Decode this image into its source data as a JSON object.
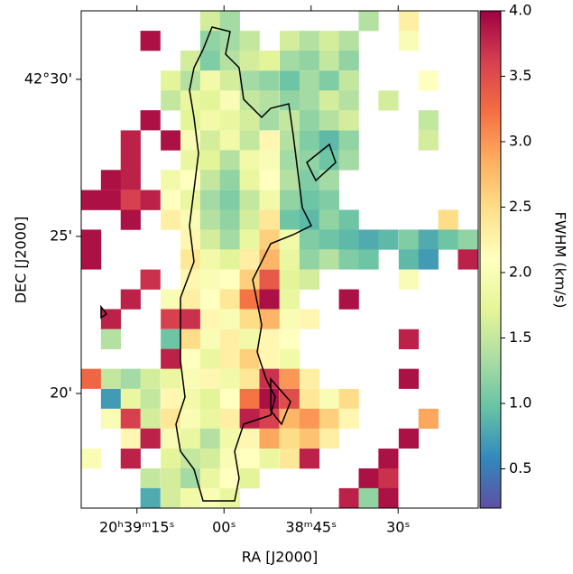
{
  "chart_data": {
    "type": "heatmap",
    "xlabel": "RA [J2000]",
    "ylabel": "DEC [J2000]",
    "colorbar_label": "FWHM (km/s)",
    "xlim": [
      2364.6,
      2296.2
    ],
    "xticks": [
      {
        "value": 2355,
        "label": "20ʰ39ᵐ15ˢ"
      },
      {
        "value": 2340,
        "label": "00ˢ"
      },
      {
        "value": 2325,
        "label": "38ᵐ45ˢ"
      },
      {
        "value": 2310,
        "label": "30ˢ"
      }
    ],
    "ylim": [
      16.35,
      32.18
    ],
    "yticks": [
      {
        "value": 30,
        "label": "42°30'"
      },
      {
        "value": 25,
        "label": "25'"
      },
      {
        "value": 20,
        "label": "20'"
      }
    ],
    "clim": [
      0.2,
      4.0
    ],
    "cticks": [
      0.5,
      {
        "value": 1.0,
        "label": "1.0"
      },
      1.5,
      {
        "value": 2.0,
        "label": "2.0"
      },
      2.5,
      {
        "value": 3.0,
        "label": "3.0"
      },
      3.5,
      {
        "value": 4.0,
        "label": "4.0"
      }
    ],
    "colormap": [
      "#5e4fa2",
      "#3288bd",
      "#66c2a5",
      "#abdda4",
      "#e6f598",
      "#ffffbf",
      "#fee08b",
      "#fdae61",
      "#f46d43",
      "#d53e4f",
      "#9e0142"
    ],
    "x": [
      2362.9,
      2359.5,
      2356.1,
      2352.7,
      2349.2,
      2345.8,
      2342.4,
      2339.0,
      2335.6,
      2332.2,
      2328.7,
      2325.3,
      2321.9,
      2318.5,
      2315.1,
      2311.7,
      2308.2,
      2304.8,
      2301.4,
      2298.0
    ],
    "y": [
      31.86,
      31.23,
      30.6,
      29.96,
      29.33,
      28.7,
      28.06,
      27.43,
      26.8,
      26.16,
      25.53,
      24.9,
      24.27,
      23.63,
      23.0,
      22.37,
      21.73,
      21.1,
      20.47,
      19.83,
      19.2,
      18.57,
      17.93,
      17.3,
      16.67
    ],
    "values": [
      [
        null,
        null,
        null,
        null,
        null,
        null,
        1.6,
        1.3,
        null,
        null,
        null,
        null,
        null,
        null,
        1.4,
        null,
        2.3,
        null,
        null,
        null
      ],
      [
        null,
        null,
        null,
        3.9,
        null,
        null,
        1.2,
        1.3,
        1.5,
        null,
        1.6,
        1.4,
        1.6,
        1.4,
        null,
        null,
        2.0,
        null,
        null,
        null
      ],
      [
        null,
        null,
        null,
        null,
        null,
        1.6,
        1.1,
        1.4,
        1.6,
        1.7,
        1.3,
        1.2,
        1.5,
        1.2,
        null,
        null,
        null,
        null,
        null,
        null
      ],
      [
        null,
        null,
        null,
        null,
        1.7,
        1.4,
        1.9,
        1.6,
        1.3,
        1.2,
        1.0,
        1.3,
        1.1,
        1.5,
        null,
        null,
        null,
        2.1,
        null,
        null
      ],
      [
        null,
        null,
        null,
        null,
        1.5,
        1.8,
        1.7,
        2.0,
        1.5,
        1.4,
        1.2,
        1.3,
        1.6,
        1.4,
        null,
        1.6,
        null,
        null,
        null,
        null
      ],
      [
        null,
        null,
        null,
        3.9,
        null,
        1.7,
        1.9,
        1.8,
        1.6,
        1.3,
        1.5,
        1.2,
        1.4,
        1.6,
        null,
        null,
        null,
        1.5,
        null,
        null
      ],
      [
        null,
        null,
        3.8,
        null,
        3.9,
        2.0,
        1.6,
        1.9,
        1.5,
        2.2,
        1.4,
        1.1,
        0.9,
        1.2,
        null,
        null,
        null,
        1.6,
        null,
        null
      ],
      [
        null,
        null,
        3.8,
        null,
        null,
        1.8,
        1.7,
        1.4,
        1.9,
        2.0,
        1.3,
        1.2,
        1.0,
        1.3,
        null,
        null,
        null,
        null,
        null,
        null
      ],
      [
        null,
        3.9,
        3.8,
        null,
        1.9,
        2.1,
        1.5,
        1.2,
        1.8,
        2.1,
        1.4,
        1.1,
        1.3,
        null,
        null,
        null,
        null,
        null,
        null,
        null
      ],
      [
        3.9,
        3.9,
        3.6,
        3.8,
        2.1,
        1.8,
        1.3,
        1.1,
        1.5,
        1.9,
        1.2,
        1.0,
        1.1,
        null,
        null,
        null,
        null,
        null,
        null,
        null
      ],
      [
        null,
        null,
        3.9,
        null,
        2.3,
        2.0,
        1.4,
        1.2,
        1.6,
        2.4,
        1.0,
        0.9,
        1.2,
        1.0,
        null,
        null,
        null,
        null,
        2.5,
        null
      ],
      [
        3.9,
        null,
        null,
        null,
        null,
        2.2,
        1.6,
        1.3,
        1.8,
        2.6,
        1.9,
        1.1,
        1.0,
        0.9,
        0.8,
        0.9,
        1.1,
        0.8,
        1.0,
        1.2
      ],
      [
        3.9,
        null,
        null,
        null,
        null,
        2.4,
        1.9,
        1.7,
        2.3,
        2.8,
        1.8,
        1.2,
        1.4,
        1.1,
        1.0,
        null,
        0.9,
        0.7,
        null,
        3.8
      ],
      [
        null,
        null,
        null,
        3.7,
        null,
        2.2,
        2.0,
        2.1,
        2.6,
        3.4,
        1.7,
        1.6,
        null,
        null,
        null,
        null,
        2.0,
        null,
        null,
        null
      ],
      [
        null,
        null,
        3.8,
        null,
        2.0,
        2.3,
        2.1,
        2.4,
        3.2,
        3.9,
        1.8,
        null,
        null,
        3.9,
        null,
        null,
        null,
        null,
        null,
        null
      ],
      [
        null,
        3.8,
        null,
        null,
        3.6,
        3.7,
        2.2,
        2.0,
        2.5,
        2.8,
        2.0,
        2.2,
        null,
        null,
        null,
        null,
        null,
        null,
        null,
        null
      ],
      [
        null,
        1.4,
        null,
        null,
        1.0,
        2.5,
        2.0,
        2.3,
        1.9,
        2.2,
        2.1,
        null,
        null,
        null,
        null,
        null,
        3.8,
        null,
        null,
        null
      ],
      [
        null,
        null,
        null,
        null,
        3.8,
        2.1,
        1.8,
        2.3,
        2.6,
        2.2,
        1.9,
        null,
        null,
        null,
        null,
        null,
        null,
        null,
        null,
        null
      ],
      [
        3.3,
        1.5,
        1.3,
        1.6,
        1.8,
        2.0,
        2.2,
        1.9,
        2.4,
        3.7,
        3.0,
        2.3,
        null,
        null,
        null,
        null,
        3.9,
        null,
        null,
        null
      ],
      [
        null,
        0.7,
        1.8,
        1.5,
        2.2,
        1.9,
        1.7,
        2.1,
        3.2,
        3.9,
        3.5,
        2.4,
        2.0,
        2.5,
        null,
        null,
        null,
        null,
        null,
        null
      ],
      [
        null,
        2.0,
        3.6,
        1.6,
        2.4,
        2.0,
        1.8,
        2.3,
        3.8,
        3.6,
        2.8,
        3.0,
        2.6,
        2.2,
        null,
        null,
        null,
        2.9,
        null,
        null
      ],
      [
        null,
        null,
        2.2,
        3.8,
        2.0,
        1.8,
        1.4,
        1.9,
        2.2,
        2.9,
        2.5,
        2.7,
        2.3,
        null,
        null,
        null,
        3.9,
        null,
        null,
        null
      ],
      [
        2.0,
        null,
        3.8,
        null,
        1.7,
        1.5,
        1.6,
        2.0,
        2.1,
        1.8,
        2.4,
        3.8,
        null,
        null,
        null,
        3.9,
        null,
        null,
        null,
        null
      ],
      [
        null,
        null,
        null,
        1.5,
        1.6,
        1.3,
        1.8,
        2.1,
        1.7,
        null,
        null,
        null,
        null,
        null,
        3.9,
        3.7,
        null,
        null,
        null,
        null
      ],
      [
        null,
        null,
        null,
        0.8,
        1.6,
        1.9,
        2.0,
        1.8,
        null,
        null,
        null,
        null,
        null,
        3.8,
        1.2,
        3.9,
        null,
        null,
        null,
        null
      ]
    ]
  }
}
